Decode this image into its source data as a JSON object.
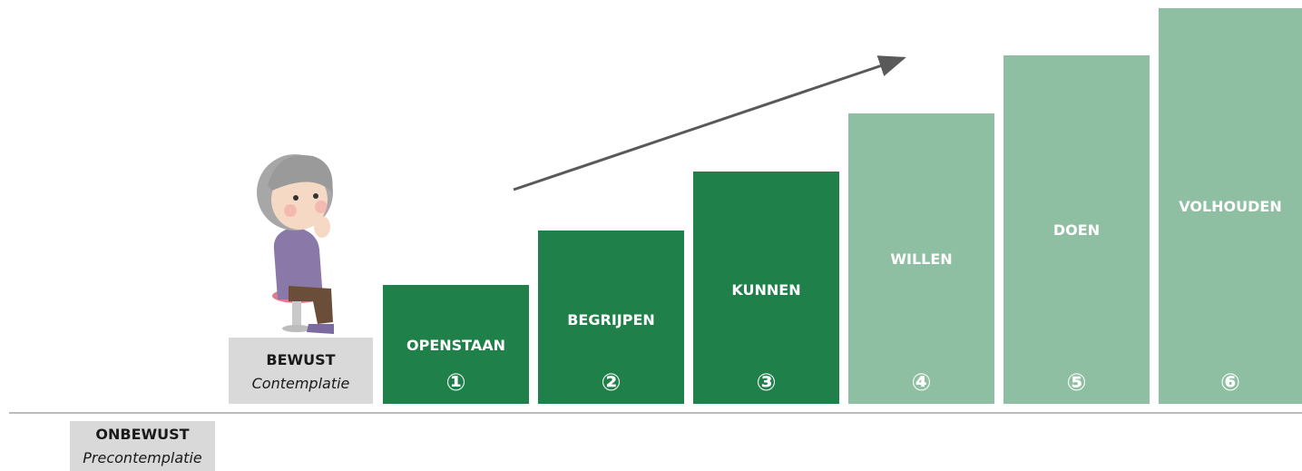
{
  "stages": [
    {
      "label": "ONBEWUST",
      "sublabel": "Precontemplatie"
    },
    {
      "label": "BEWUST",
      "sublabel": "Contemplatie"
    }
  ],
  "steps": [
    {
      "label": "OPENSTAAN",
      "number": "①"
    },
    {
      "label": "BEGRIJPEN",
      "number": "②"
    },
    {
      "label": "KUNNEN",
      "number": "③"
    },
    {
      "label": "WILLEN",
      "number": "④"
    },
    {
      "label": "DOEN",
      "number": "⑤"
    },
    {
      "label": "VOLHOUDEN",
      "number": "⑥"
    }
  ]
}
